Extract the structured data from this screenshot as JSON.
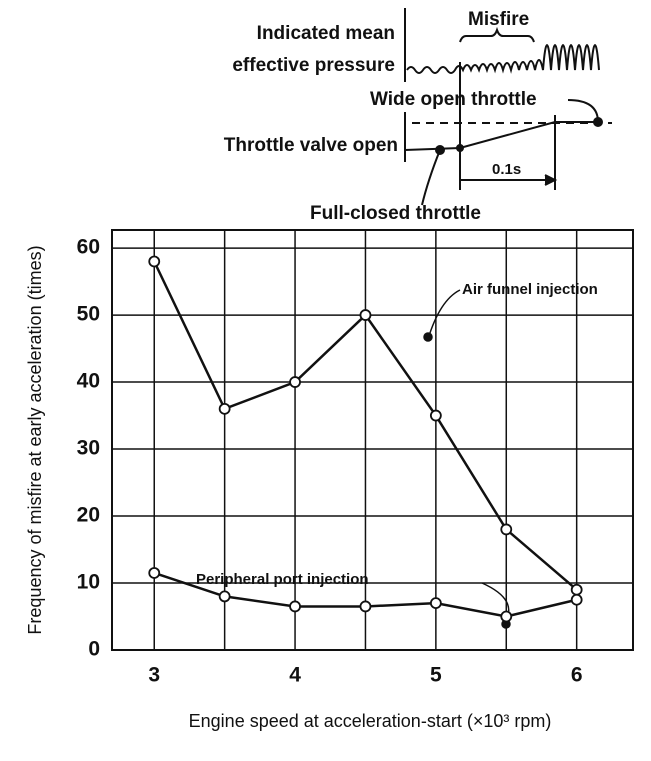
{
  "chart_data": {
    "type": "line",
    "x": [
      3,
      3.5,
      4,
      4.5,
      5,
      5.5,
      6
    ],
    "series": [
      {
        "name": "Air funnel injection",
        "color": "#111111",
        "values": [
          58,
          36,
          40,
          50,
          35,
          18,
          9
        ]
      },
      {
        "name": "Peripheral port injection",
        "color": "#111111",
        "values": [
          11.5,
          8,
          6.5,
          6.5,
          7,
          5,
          7.5
        ]
      }
    ],
    "xlabel": "Engine speed at acceleration-start (×10³ rpm)",
    "ylabel": "Frequency of misfire at early acceleration  (times)",
    "xlim": [
      2.7,
      6.4
    ],
    "xticks": [
      3,
      4,
      5,
      6
    ],
    "xgrid_minor": [
      3.5,
      4.5,
      5.5
    ],
    "ylim": [
      0,
      62.7
    ],
    "yticks": [
      0,
      10,
      20,
      30,
      40,
      50,
      60
    ],
    "grid": true,
    "inset": {
      "pressure_label": [
        "Indicated mean",
        "effective pressure"
      ],
      "misfire": "Misfire",
      "wide_open": "Wide open throttle",
      "valve_open": "Throttle valve open",
      "interval": "0.1s",
      "full_closed": "Full-closed throttle"
    }
  }
}
